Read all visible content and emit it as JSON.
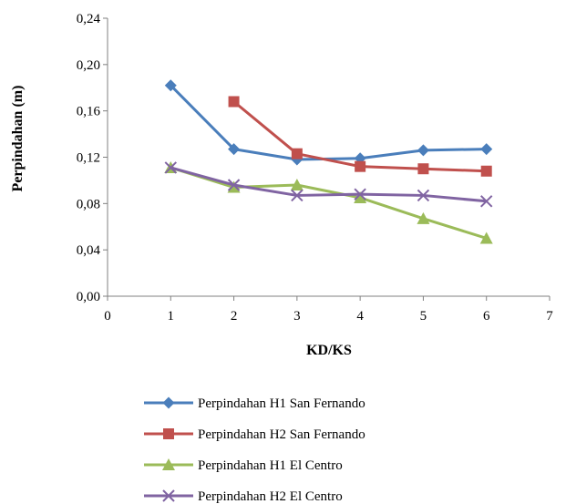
{
  "chart_data": {
    "type": "line",
    "title": "",
    "xlabel": "KD/KS",
    "ylabel": "Perpindahan (m)",
    "xlim": [
      0,
      7
    ],
    "ylim": [
      0,
      0.24
    ],
    "x_ticks": [
      0,
      1,
      2,
      3,
      4,
      5,
      6,
      7
    ],
    "y_ticks": [
      0.0,
      0.04,
      0.08,
      0.12,
      0.16,
      0.2,
      0.24
    ],
    "x_tick_labels": [
      "0",
      "1",
      "2",
      "3",
      "4",
      "5",
      "6",
      "7"
    ],
    "y_tick_labels": [
      "0,00",
      "0,04",
      "0,08",
      "0,12",
      "0,16",
      "0,20",
      "0,24"
    ],
    "grid": false,
    "legend_position": "bottom",
    "series": [
      {
        "name": "Perpindahan H1 San Fernando",
        "color": "#4a7ebb",
        "marker": "diamond",
        "x": [
          1,
          2,
          3,
          4,
          5,
          6
        ],
        "y": [
          0.182,
          0.127,
          0.118,
          0.119,
          0.126,
          0.127
        ]
      },
      {
        "name": "Perpindahan H2 San Fernando",
        "color": "#c0504d",
        "marker": "square",
        "x": [
          2,
          3,
          4,
          5,
          6
        ],
        "y": [
          0.168,
          0.123,
          0.112,
          0.11,
          0.108
        ]
      },
      {
        "name": "Perpindahan H1 El Centro",
        "color": "#9bbb59",
        "marker": "triangle",
        "x": [
          1,
          2,
          3,
          4,
          5,
          6
        ],
        "y": [
          0.111,
          0.094,
          0.096,
          0.085,
          0.067,
          0.05
        ]
      },
      {
        "name": "Perpindahan H2 El Centro",
        "color": "#8064a2",
        "marker": "x",
        "x": [
          1,
          2,
          3,
          4,
          5,
          6
        ],
        "y": [
          0.111,
          0.096,
          0.087,
          0.088,
          0.087,
          0.082
        ]
      }
    ]
  }
}
